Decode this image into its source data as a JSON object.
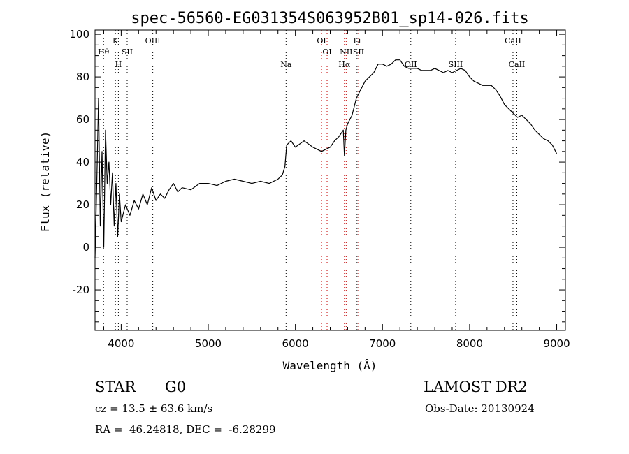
{
  "chart_data": {
    "type": "line",
    "title": "spec-56560-EG031354S063952B01_sp14-026.fits",
    "xlabel": "Wavelength (Å)",
    "ylabel": "Flux (relative)",
    "xlim": [
      3700,
      9100
    ],
    "ylim": [
      -39,
      102
    ],
    "xticks": [
      4000,
      5000,
      6000,
      7000,
      8000,
      9000
    ],
    "yticks": [
      -20,
      0,
      20,
      40,
      60,
      80,
      100
    ],
    "series": [
      {
        "color": "#000000",
        "x": [
          3700,
          3720,
          3740,
          3760,
          3780,
          3800,
          3820,
          3840,
          3860,
          3880,
          3900,
          3920,
          3940,
          3960,
          3980,
          4000,
          4050,
          4100,
          4150,
          4200,
          4250,
          4300,
          4350,
          4400,
          4450,
          4500,
          4550,
          4600,
          4650,
          4700,
          4800,
          4900,
          5000,
          5100,
          5200,
          5300,
          5400,
          5500,
          5600,
          5700,
          5800,
          5850,
          5880,
          5900,
          5950,
          6000,
          6100,
          6200,
          6300,
          6400,
          6450,
          6500,
          6550,
          6563,
          6580,
          6600,
          6650,
          6700,
          6750,
          6800,
          6850,
          6900,
          6950,
          7000,
          7050,
          7100,
          7150,
          7200,
          7250,
          7300,
          7350,
          7400,
          7450,
          7500,
          7550,
          7600,
          7650,
          7700,
          7750,
          7800,
          7850,
          7900,
          7950,
          8000,
          8050,
          8100,
          8150,
          8200,
          8250,
          8300,
          8350,
          8400,
          8450,
          8500,
          8550,
          8600,
          8650,
          8700,
          8750,
          8800,
          8850,
          8900,
          8950,
          9000
        ],
        "y": [
          -5,
          30,
          70,
          10,
          45,
          0,
          55,
          30,
          40,
          20,
          35,
          10,
          30,
          5,
          25,
          12,
          20,
          15,
          22,
          18,
          25,
          20,
          28,
          22,
          25,
          23,
          27,
          30,
          26,
          28,
          27,
          30,
          30,
          29,
          31,
          32,
          31,
          30,
          31,
          30,
          32,
          34,
          38,
          48,
          50,
          47,
          50,
          47,
          45,
          47,
          50,
          52,
          55,
          43,
          55,
          58,
          62,
          70,
          74,
          78,
          80,
          82,
          86,
          86,
          85,
          86,
          88,
          88,
          85,
          84,
          84,
          84,
          83,
          83,
          83,
          84,
          83,
          82,
          83,
          82,
          83,
          84,
          83,
          80,
          78,
          77,
          76,
          76,
          76,
          74,
          71,
          67,
          65,
          63,
          61,
          62,
          60,
          58,
          55,
          53,
          51,
          50,
          48,
          44
        ]
      }
    ],
    "line_markers": [
      {
        "label": "Hθ",
        "x": 3798,
        "color": "#000000",
        "row": 1
      },
      {
        "label": "K",
        "x": 3934,
        "color": "#000000",
        "row": 0
      },
      {
        "label": "H",
        "x": 3968,
        "color": "#000000",
        "row": 2
      },
      {
        "label": "SII",
        "x": 4069,
        "color": "#000000",
        "row": 1
      },
      {
        "label": "OIII",
        "x": 4363,
        "color": "#000000",
        "row": 0
      },
      {
        "label": "Na",
        "x": 5893,
        "color": "#000000",
        "row": 2
      },
      {
        "label": "OI",
        "x": 6300,
        "color": "#c00000",
        "row": 0
      },
      {
        "label": "OI",
        "x": 6364,
        "color": "#c00000",
        "row": 1
      },
      {
        "label": "Hα",
        "x": 6563,
        "color": "#c00000",
        "row": 2
      },
      {
        "label": "NII",
        "x": 6583,
        "color": "#c00000",
        "row": 1
      },
      {
        "label": "Li",
        "x": 6708,
        "color": "#000000",
        "row": 0
      },
      {
        "label": "SII",
        "x": 6725,
        "color": "#c00000",
        "row": 1
      },
      {
        "label": "OII",
        "x": 7325,
        "color": "#000000",
        "row": 2
      },
      {
        "label": "SIII",
        "x": 7840,
        "color": "#000000",
        "row": 2
      },
      {
        "label": "CaII",
        "x": 8498,
        "color": "#000000",
        "row": 0
      },
      {
        "label": "CaII",
        "x": 8542,
        "color": "#000000",
        "row": 2
      }
    ]
  },
  "info": {
    "object_class": "STAR",
    "subclass": "G0",
    "survey": "LAMOST DR2",
    "cz": "cz = 13.5 ± 63.6 km/s",
    "obs_date": "Obs-Date: 20130924",
    "coords": "RA =  46.24818, DEC =  -6.28299"
  }
}
